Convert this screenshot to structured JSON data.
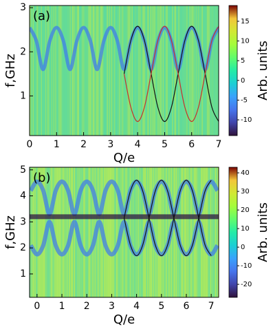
{
  "chart_data": [
    {
      "type": "heatmap",
      "panel_label": "(a)",
      "xlabel": "Q/e",
      "ylabel": "f,GHz",
      "colorbar_label": "Arb. units",
      "xlim": [
        0,
        7
      ],
      "xticks": [
        0,
        1,
        2,
        3,
        4,
        5,
        6,
        7
      ],
      "ylim": [
        0.1,
        3.05
      ],
      "yticks": [
        1,
        2,
        3
      ],
      "clim": [
        -14,
        19
      ],
      "cticks": [
        -10,
        -5,
        0,
        5,
        10,
        15
      ],
      "colormap": "turbo",
      "series": [
        {
          "color": "#3c78f0",
          "line_width": 5,
          "x": [
            0,
            0.25,
            0.5,
            0.75,
            1,
            1.25,
            1.5,
            1.75,
            2,
            2.25,
            2.5,
            2.75,
            3,
            3.25,
            3.5,
            3.75,
            4,
            4.25,
            4.5,
            4.75,
            5,
            5.25,
            5.5,
            5.75,
            6,
            6.25,
            6.5,
            6.75,
            7
          ],
          "values": [
            2.55,
            2.25,
            1.6,
            2.25,
            2.55,
            2.25,
            1.6,
            2.25,
            2.55,
            2.25,
            1.6,
            2.25,
            2.55,
            2.25,
            1.6,
            2.25,
            2.55,
            2.25,
            1.6,
            2.25,
            2.55,
            2.25,
            1.6,
            2.25,
            2.55,
            2.25,
            1.6,
            2.25,
            2.55
          ]
        },
        {
          "color": "#111111",
          "line_width": 1.2,
          "x": [
            3.5,
            3.75,
            4,
            4.25,
            4.5,
            4.75,
            5,
            5.25,
            5.5,
            5.75,
            6,
            6.25,
            6.5,
            6.75,
            7
          ],
          "values": [
            1.5,
            2.26,
            2.58,
            2.26,
            1.5,
            0.74,
            0.42,
            0.74,
            1.5,
            2.26,
            2.58,
            2.26,
            1.5,
            0.74,
            0.42
          ]
        },
        {
          "color": "#c8302a",
          "line_width": 1.2,
          "x": [
            3.5,
            3.75,
            4,
            4.25,
            4.5,
            4.75,
            5,
            5.25,
            5.5,
            5.75,
            6,
            6.25,
            6.5,
            6.75,
            7
          ],
          "values": [
            1.5,
            0.74,
            0.42,
            0.74,
            1.5,
            2.26,
            2.58,
            2.26,
            1.5,
            0.74,
            0.42,
            0.74,
            1.5,
            2.26,
            2.58
          ]
        }
      ]
    },
    {
      "type": "heatmap",
      "panel_label": "(b)",
      "xlabel": "Q/e",
      "ylabel": "f,GHz",
      "colorbar_label": "Arb. units",
      "xlim": [
        -0.3,
        7.3
      ],
      "xticks": [
        0,
        1,
        2,
        3,
        4,
        5,
        6,
        7
      ],
      "ylim": [
        0.1,
        5.1
      ],
      "yticks": [
        1,
        2,
        3,
        4,
        5
      ],
      "clim": [
        -27,
        43
      ],
      "cticks": [
        -20,
        -10,
        0,
        10,
        20,
        30,
        40
      ],
      "colormap": "turbo",
      "series": [
        {
          "color": "#3c78f0",
          "line_width": 6,
          "x": [
            -0.25,
            0,
            0.25,
            0.5,
            0.75,
            1,
            1.25,
            1.5,
            1.75,
            2,
            2.25,
            2.5,
            2.75,
            3,
            3.25,
            3.5,
            3.75,
            4,
            4.25,
            4.5,
            4.75,
            5,
            5.25,
            5.5,
            5.75,
            6,
            6.25,
            6.5,
            6.75,
            7,
            7.25
          ],
          "values": [
            4.2,
            4.55,
            4.2,
            3.3,
            4.2,
            4.55,
            4.2,
            3.3,
            4.2,
            4.55,
            4.2,
            3.3,
            4.2,
            4.55,
            4.2,
            3.3,
            4.2,
            4.55,
            4.2,
            3.3,
            4.2,
            4.55,
            4.2,
            3.3,
            4.2,
            4.55,
            4.2,
            3.3,
            4.2,
            4.55,
            4.2
          ]
        },
        {
          "color": "#3c78f0",
          "line_width": 6,
          "x": [
            -0.25,
            0,
            0.25,
            0.5,
            0.75,
            1,
            1.25,
            1.5,
            1.75,
            2,
            2.25,
            2.5,
            2.75,
            3,
            3.25,
            3.5,
            3.75,
            4,
            4.25,
            4.5,
            4.75,
            5,
            5.25,
            5.5,
            5.75,
            6,
            6.25,
            6.5,
            6.75,
            7,
            7.25
          ],
          "values": [
            2.1,
            1.75,
            2.1,
            3.0,
            2.1,
            1.75,
            2.1,
            3.0,
            2.1,
            1.75,
            2.1,
            3.0,
            2.1,
            1.75,
            2.1,
            3.0,
            2.1,
            1.75,
            2.1,
            3.0,
            2.1,
            1.75,
            2.1,
            3.0,
            2.1,
            1.75,
            2.1,
            3.0,
            2.1,
            1.75,
            2.1
          ]
        },
        {
          "color": "#2a0a40",
          "line_width": 7,
          "x": [
            -0.3,
            7.3
          ],
          "values": [
            3.2,
            3.2
          ]
        },
        {
          "color": "#111111",
          "line_width": 1.2,
          "x": [
            3.5,
            3.75,
            4,
            4.25,
            4.5,
            4.75,
            5,
            5.25,
            5.5,
            5.75,
            6,
            6.25,
            6.5,
            6.75,
            7
          ],
          "values": [
            3.15,
            4.18,
            4.6,
            4.18,
            3.15,
            2.12,
            1.7,
            2.12,
            3.15,
            4.18,
            4.6,
            4.18,
            3.15,
            2.12,
            1.7
          ]
        },
        {
          "color": "#111111",
          "line_width": 1.2,
          "x": [
            3.5,
            3.75,
            4,
            4.25,
            4.5,
            4.75,
            5,
            5.25,
            5.5,
            5.75,
            6,
            6.25,
            6.5,
            6.75,
            7
          ],
          "values": [
            3.15,
            2.12,
            1.7,
            2.12,
            3.15,
            4.18,
            4.6,
            4.18,
            3.15,
            2.12,
            1.7,
            2.12,
            3.15,
            4.18,
            4.6
          ]
        }
      ]
    }
  ]
}
